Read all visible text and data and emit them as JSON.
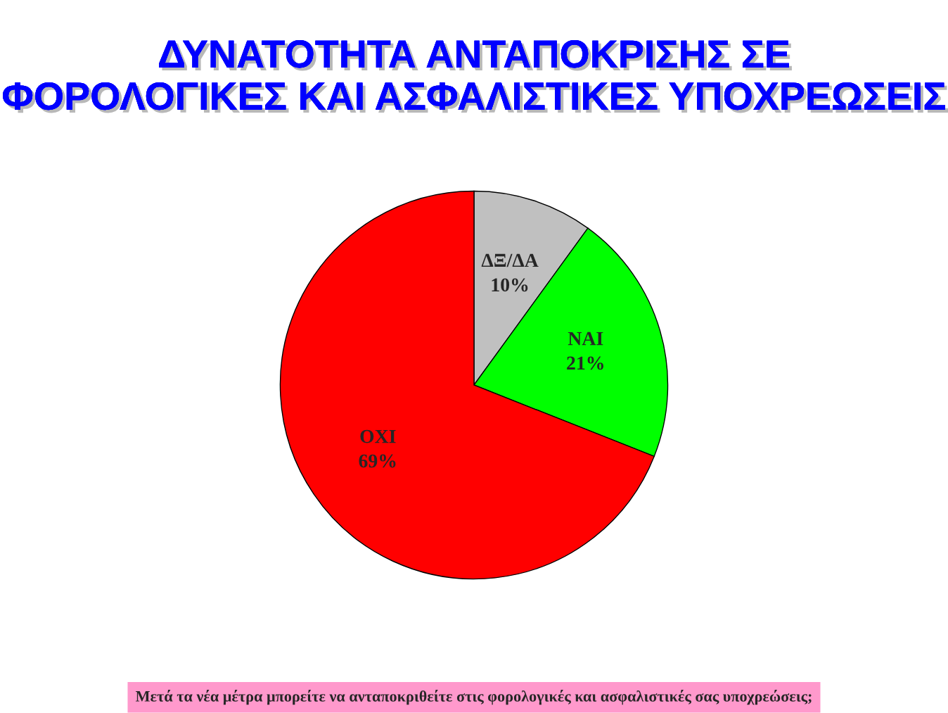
{
  "chart_data": {
    "type": "pie",
    "title": "ΔΥΝΑΤΟΤΗΤΑ ΑΝΤΑΠΟΚΡΙΣΗΣ ΣΕ\nΦΟΡΟΛΟΓΙΚΕΣ ΚΑΙ ΑΣΦΑΛΙΣΤΙΚΕΣ ΥΠΟΧΡΕΩΣΕΙΣ",
    "categories": [
      "ΔΞ/ΔΑ",
      "ΝΑΙ",
      "ΟΧΙ"
    ],
    "values": [
      10,
      21,
      69
    ],
    "value_labels": [
      "10%",
      "21%",
      "69%"
    ],
    "colors": [
      "#c0c0c0",
      "#00ff00",
      "#ff0000"
    ],
    "annotations": [
      "Μετά τα νέα μέτρα μπορείτε να ανταποκριθείτε στις φορολογικές και ασφαλιστικές σας υποχρεώσεις;"
    ]
  }
}
